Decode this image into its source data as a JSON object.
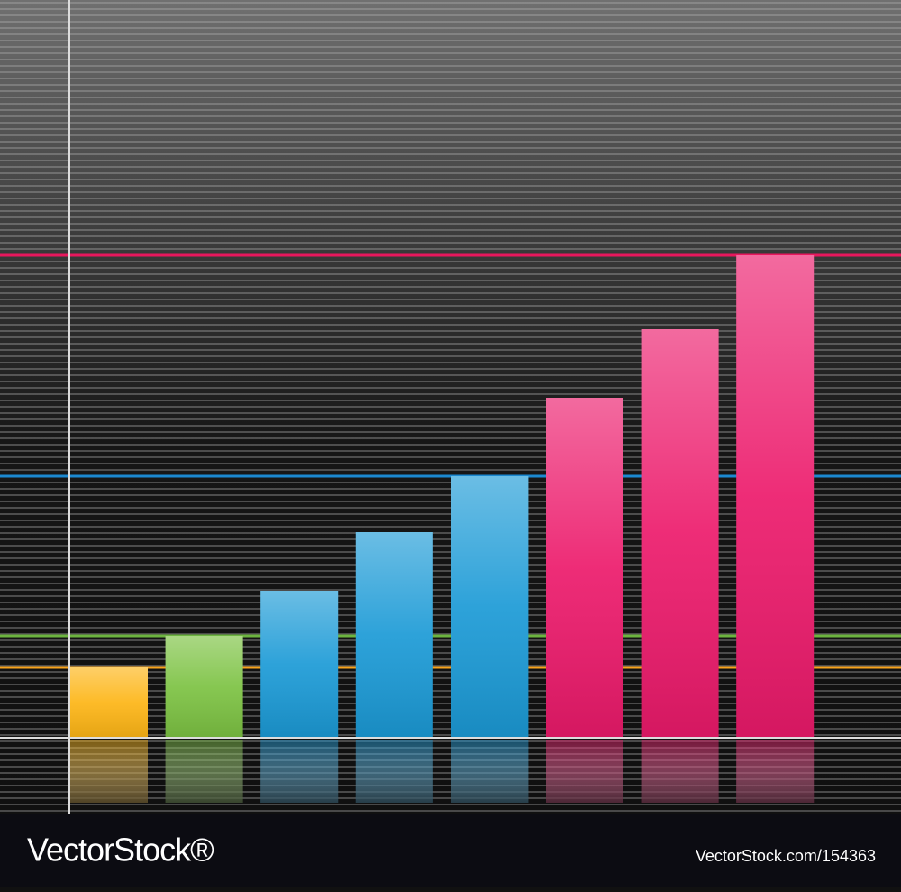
{
  "chart_data": {
    "type": "bar",
    "categories": [
      null,
      null,
      null,
      null,
      null,
      null,
      null,
      null
    ],
    "values": [
      78,
      113,
      163,
      228,
      290,
      377,
      453,
      535
    ],
    "colors": [
      "#fdb515",
      "#7cc242",
      "#1b9ad6",
      "#1b9ad6",
      "#1b9ad6",
      "#ec1a6b",
      "#ec1a6b",
      "#ec1a6b"
    ],
    "ylim": [
      0,
      818
    ],
    "reference_lines": [
      {
        "value": 535,
        "color": "#e8175d"
      },
      {
        "value": 290,
        "color": "#1b88d0"
      },
      {
        "value": 113,
        "color": "#6cb43f"
      },
      {
        "value": 78,
        "color": "#f7a21b"
      }
    ]
  },
  "footer": {
    "brand": "VectorStock®",
    "id": "VectorStock.com/154363"
  }
}
